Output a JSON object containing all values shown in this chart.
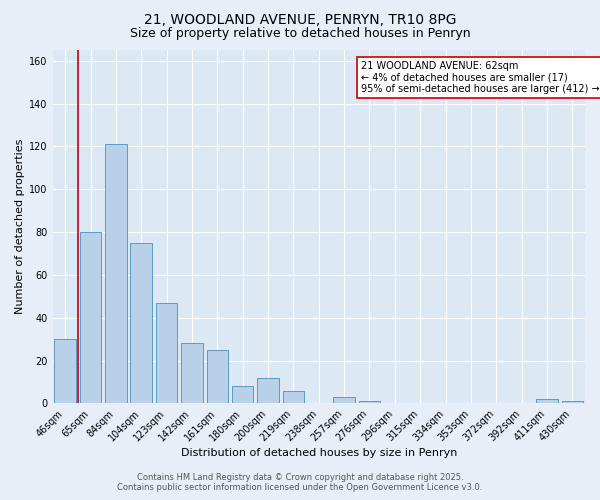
{
  "title1": "21, WOODLAND AVENUE, PENRYN, TR10 8PG",
  "title2": "Size of property relative to detached houses in Penryn",
  "xlabel": "Distribution of detached houses by size in Penryn",
  "ylabel": "Number of detached properties",
  "categories": [
    "46sqm",
    "65sqm",
    "84sqm",
    "104sqm",
    "123sqm",
    "142sqm",
    "161sqm",
    "180sqm",
    "200sqm",
    "219sqm",
    "238sqm",
    "257sqm",
    "276sqm",
    "296sqm",
    "315sqm",
    "334sqm",
    "353sqm",
    "372sqm",
    "392sqm",
    "411sqm",
    "430sqm"
  ],
  "values": [
    30,
    80,
    121,
    75,
    47,
    28,
    25,
    8,
    12,
    6,
    0,
    3,
    1,
    0,
    0,
    0,
    0,
    0,
    0,
    2,
    1
  ],
  "bar_color": "#b8d0e8",
  "bar_edge_color": "#5a9ac8",
  "red_line_index": 1,
  "annotation_text": "21 WOODLAND AVENUE: 62sqm\n← 4% of detached houses are smaller (17)\n95% of semi-detached houses are larger (412) →",
  "annotation_box_color": "#ffffff",
  "annotation_box_edge_color": "#cc0000",
  "background_color": "#e8eef8",
  "plot_bg_color": "#dce8f4",
  "ylim": [
    0,
    165
  ],
  "yticks": [
    0,
    20,
    40,
    60,
    80,
    100,
    120,
    140,
    160
  ],
  "footer1": "Contains HM Land Registry data © Crown copyright and database right 2025.",
  "footer2": "Contains public sector information licensed under the Open Government Licence v3.0.",
  "title1_fontsize": 10,
  "title2_fontsize": 9,
  "xlabel_fontsize": 8,
  "ylabel_fontsize": 8,
  "tick_fontsize": 7,
  "annotation_fontsize": 7,
  "footer_fontsize": 6,
  "grid_color": "#ffffff",
  "red_line_color": "#cc0000"
}
